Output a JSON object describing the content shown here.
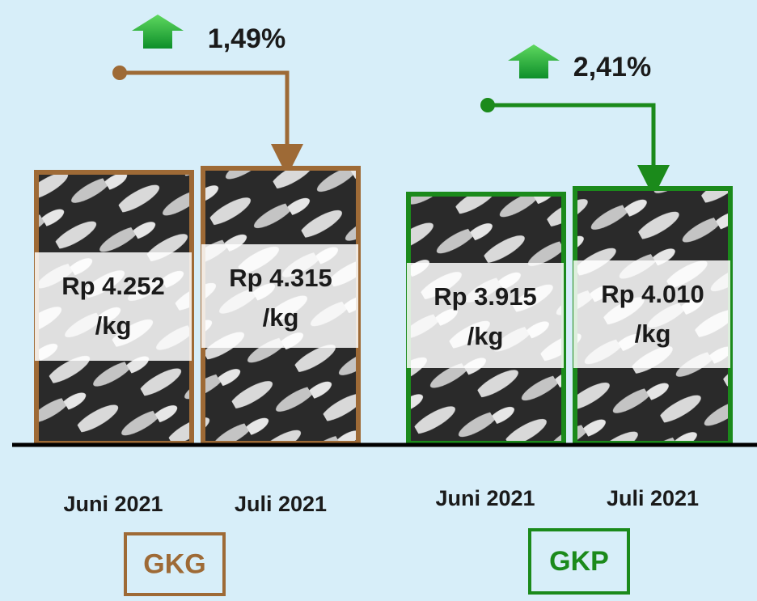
{
  "groups": [
    {
      "name": "GKG",
      "change": "1,49%",
      "items": [
        {
          "period": "Juni 2021",
          "price": "Rp 4.252",
          "unit": "/kg"
        },
        {
          "period": "Juli 2021",
          "price": "Rp 4.315",
          "unit": "/kg"
        }
      ]
    },
    {
      "name": "GKP",
      "change": "2,41%",
      "items": [
        {
          "period": "Juni 2021",
          "price": "Rp 3.915",
          "unit": "/kg"
        },
        {
          "period": "Juli 2021",
          "price": "Rp 4.010",
          "unit": "/kg"
        }
      ]
    }
  ]
}
